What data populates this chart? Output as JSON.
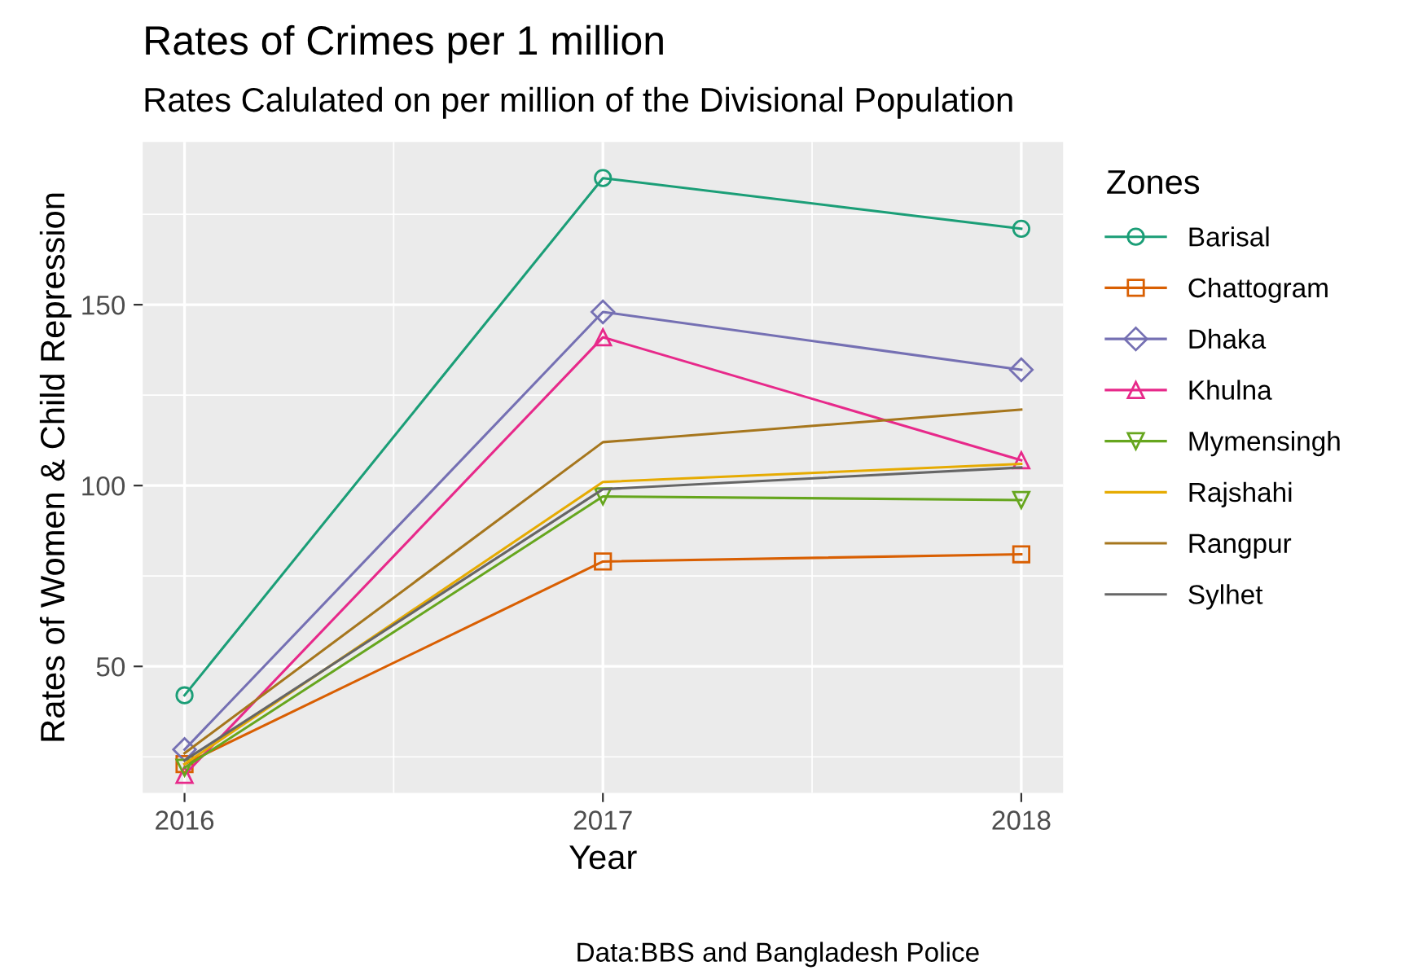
{
  "chart_data": {
    "type": "line",
    "title": "Rates of Crimes per 1 million",
    "subtitle": "Rates Calulated on per million of the Divisional Population",
    "xlabel": "Year",
    "ylabel": "Rates of Women & Child Repression",
    "legend_title": "Zones",
    "annotations": [
      "Data:BBS and Bangladesh Police"
    ],
    "x": [
      2016,
      2017,
      2018
    ],
    "xlim": [
      2015.9,
      2018.1
    ],
    "xticks": [
      2016,
      2017,
      2018
    ],
    "ylim": [
      15,
      195
    ],
    "yticks": [
      50,
      100,
      150
    ],
    "grid": true,
    "legend": "right",
    "series": [
      {
        "name": "Barisal",
        "color": "#1b9e77",
        "marker": "circle",
        "values": [
          42,
          185,
          171
        ]
      },
      {
        "name": "Chattogram",
        "color": "#d95f02",
        "marker": "square",
        "values": [
          23,
          79,
          81
        ]
      },
      {
        "name": "Dhaka",
        "color": "#7570b3",
        "marker": "diamond",
        "values": [
          27,
          148,
          132
        ]
      },
      {
        "name": "Khulna",
        "color": "#e7298a",
        "marker": "triangle",
        "values": [
          20,
          141,
          107
        ]
      },
      {
        "name": "Mymensingh",
        "color": "#66a61e",
        "marker": "triangle_down",
        "values": [
          22,
          97,
          96
        ]
      },
      {
        "name": "Rajshahi",
        "color": "#e6ab02",
        "marker": "none",
        "values": [
          23,
          101,
          106
        ]
      },
      {
        "name": "Rangpur",
        "color": "#a6761d",
        "marker": "none",
        "values": [
          26,
          112,
          121
        ]
      },
      {
        "name": "Sylhet",
        "color": "#666666",
        "marker": "none",
        "values": [
          24,
          99,
          105
        ]
      }
    ]
  }
}
